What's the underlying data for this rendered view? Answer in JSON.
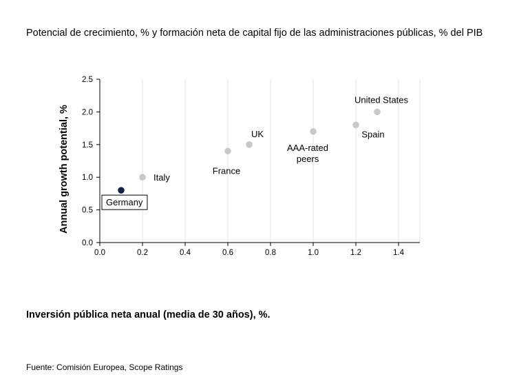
{
  "title": "Potencial de crecimiento, % y formación neta de capital fijo de las administraciones públicas, % del PIB",
  "source": "Fuente: Comisión Europea, Scope Ratings",
  "colors": {
    "point_default": "#c8c8c8",
    "point_highlight": "#0d2347",
    "axis": "#000000",
    "grid": "#e3e3e3"
  },
  "chart_data": {
    "type": "scatter",
    "xlabel": "Inversión pública neta anual (media de 30 años), %.",
    "ylabel": "Annual growth potential, %",
    "xlim": [
      0,
      1.5
    ],
    "ylim": [
      0,
      2.5
    ],
    "xticks": [
      "0.0",
      "0.2",
      "0.4",
      "0.6",
      "0.8",
      "1.0",
      "1.2",
      "1.4"
    ],
    "yticks": [
      "0.0",
      "0.5",
      "1.0",
      "1.5",
      "2.0",
      "2.5"
    ],
    "grid": "vertical",
    "points": [
      {
        "label": "Germany",
        "x": 0.1,
        "y": 0.8,
        "highlight": true
      },
      {
        "label": "Italy",
        "x": 0.2,
        "y": 1.0
      },
      {
        "label": "France",
        "x": 0.6,
        "y": 1.4
      },
      {
        "label": "UK",
        "x": 0.7,
        "y": 1.5
      },
      {
        "label": "AAA-rated peers",
        "x": 1.0,
        "y": 1.7
      },
      {
        "label": "Spain",
        "x": 1.2,
        "y": 1.8
      },
      {
        "label": "United States",
        "x": 1.3,
        "y": 2.0
      }
    ]
  }
}
